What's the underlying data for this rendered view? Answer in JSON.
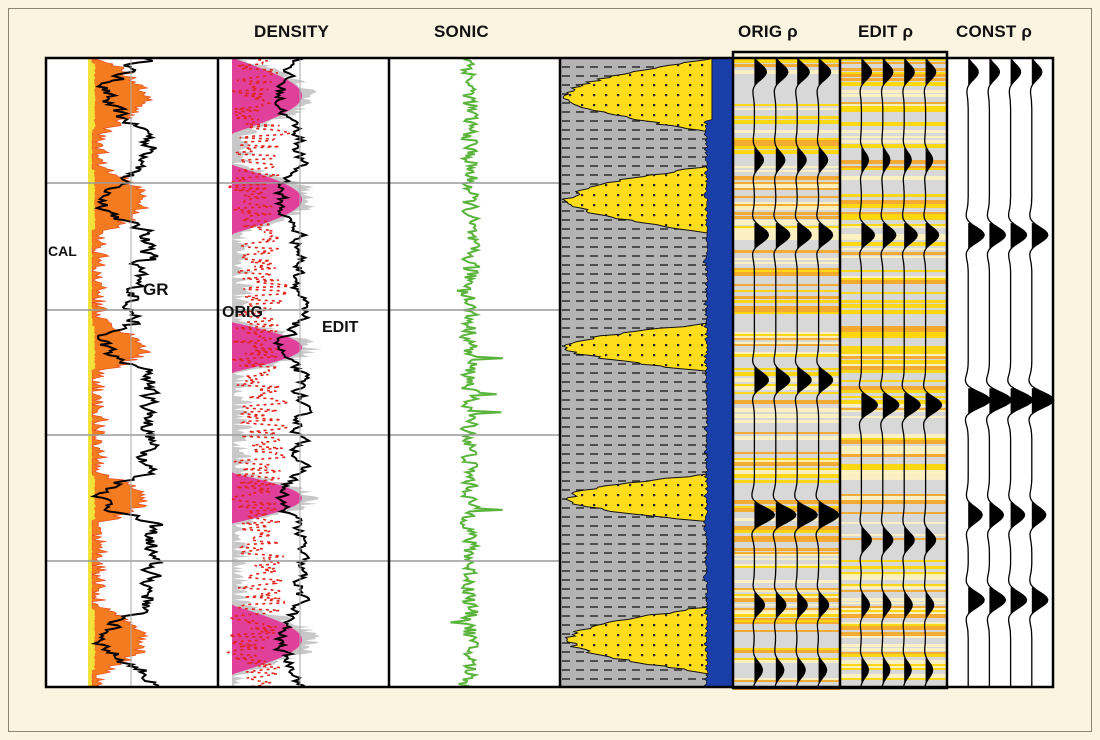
{
  "headers": {
    "density": "DENSITY",
    "sonic": "SONIC",
    "orig_rho": "ORIG ρ",
    "edit_rho": "EDIT ρ",
    "const_rho": "CONST ρ"
  },
  "labels": {
    "cal": "CAL",
    "gr": "GR",
    "orig": "ORIG",
    "edit": "EDIT"
  },
  "colors": {
    "background": "#fbf4e1",
    "gamma_fill": "#f47b20",
    "caliper": "#f2e23a",
    "density_fill": "#e0409a",
    "density_orig": "#e2231a",
    "sonic": "#5ab43c",
    "lithology_sand": "#ffdd1a",
    "lithology_shale": "#b4b4b4",
    "water": "#1a3fa8",
    "seismic_bg": "#d8d8d8",
    "reflectivity": "#f5a623"
  },
  "tracks": [
    {
      "id": "gamma-ray",
      "curves": [
        "CAL",
        "GR"
      ]
    },
    {
      "id": "density",
      "curves": [
        "ORIG",
        "EDIT"
      ]
    },
    {
      "id": "sonic",
      "curves": [
        "SONIC"
      ]
    },
    {
      "id": "lithology",
      "curves": []
    },
    {
      "id": "synthetic-orig",
      "curves": [
        "ORIG ρ"
      ]
    },
    {
      "id": "synthetic-edit",
      "curves": [
        "EDIT ρ"
      ]
    },
    {
      "id": "synthetic-const",
      "curves": [
        "CONST ρ"
      ]
    }
  ]
}
